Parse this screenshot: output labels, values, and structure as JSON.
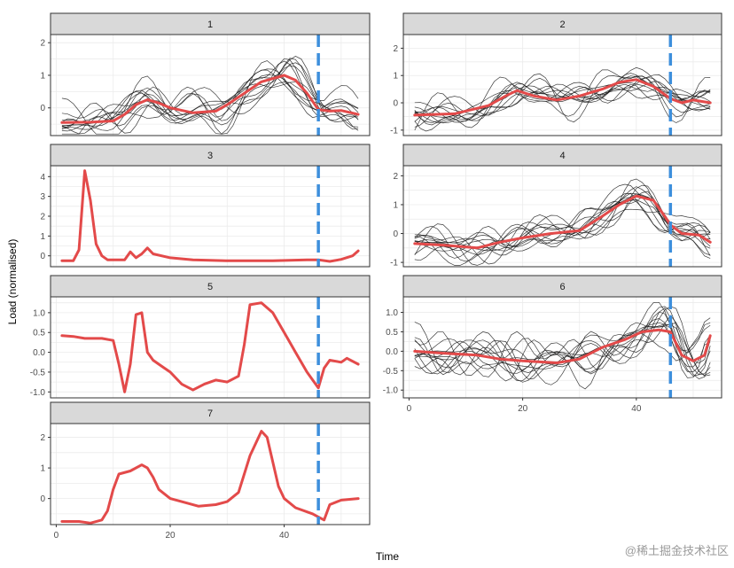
{
  "chart_data": {
    "type": "line",
    "facet_type": "faceted small multiples",
    "xlabel": "Time",
    "ylabel": "Load (normalised)",
    "xlim": [
      -1,
      55
    ],
    "x_ticks": [
      0,
      20,
      40
    ],
    "x_tick_labels": [
      "0",
      "20",
      "40"
    ],
    "vline_x": 46,
    "colors": {
      "centroid": "#e34a4a",
      "member": "#1a1a1a",
      "vline": "#3d8fdc",
      "strip": "#d9d9d9",
      "grid": "#ebebeb"
    },
    "panels": [
      {
        "label": "1",
        "ylim": [
          -0.85,
          2.25
        ],
        "y_ticks": [
          0,
          1,
          2
        ],
        "y_tick_labels": [
          "0",
          "1",
          "2"
        ],
        "members": 12,
        "centroid": [
          [
            1,
            -0.45
          ],
          [
            6,
            -0.44
          ],
          [
            10,
            -0.4
          ],
          [
            12,
            -0.2
          ],
          [
            14,
            0.1
          ],
          [
            16,
            0.25
          ],
          [
            18,
            0.15
          ],
          [
            20,
            0.0
          ],
          [
            24,
            -0.15
          ],
          [
            28,
            -0.1
          ],
          [
            30,
            0.1
          ],
          [
            33,
            0.45
          ],
          [
            36,
            0.8
          ],
          [
            40,
            1.0
          ],
          [
            42,
            0.85
          ],
          [
            44,
            0.45
          ],
          [
            46,
            -0.05
          ],
          [
            48,
            -0.1
          ],
          [
            50,
            -0.08
          ],
          [
            53,
            -0.2
          ]
        ]
      },
      {
        "label": "2",
        "ylim": [
          -1.2,
          2.5
        ],
        "y_ticks": [
          -1,
          0,
          1,
          2
        ],
        "y_tick_labels": [
          "-1",
          "0",
          "1",
          "2"
        ],
        "members": 12,
        "centroid": [
          [
            1,
            -0.45
          ],
          [
            8,
            -0.4
          ],
          [
            14,
            -0.1
          ],
          [
            17,
            0.25
          ],
          [
            19,
            0.45
          ],
          [
            22,
            0.25
          ],
          [
            26,
            0.1
          ],
          [
            30,
            0.25
          ],
          [
            34,
            0.5
          ],
          [
            37,
            0.75
          ],
          [
            40,
            0.85
          ],
          [
            43,
            0.6
          ],
          [
            46,
            0.15
          ],
          [
            48,
            0.0
          ],
          [
            50,
            0.1
          ],
          [
            53,
            0.0
          ]
        ]
      },
      {
        "label": "3",
        "ylim": [
          -0.55,
          4.55
        ],
        "y_ticks": [
          0,
          1,
          2,
          3,
          4
        ],
        "y_tick_labels": [
          "0",
          "1",
          "2",
          "3",
          "4"
        ],
        "members": 0,
        "centroid": [
          [
            1,
            -0.25
          ],
          [
            3,
            -0.25
          ],
          [
            4,
            0.3
          ],
          [
            5,
            4.3
          ],
          [
            6,
            2.8
          ],
          [
            7,
            0.6
          ],
          [
            8,
            0.0
          ],
          [
            9,
            -0.2
          ],
          [
            12,
            -0.2
          ],
          [
            13,
            0.2
          ],
          [
            14,
            -0.1
          ],
          [
            15,
            0.1
          ],
          [
            16,
            0.4
          ],
          [
            17,
            0.1
          ],
          [
            20,
            -0.1
          ],
          [
            24,
            -0.2
          ],
          [
            30,
            -0.25
          ],
          [
            38,
            -0.25
          ],
          [
            44,
            -0.2
          ],
          [
            46,
            -0.2
          ],
          [
            48,
            -0.28
          ],
          [
            50,
            -0.18
          ],
          [
            52,
            0.0
          ],
          [
            53,
            0.25
          ]
        ]
      },
      {
        "label": "4",
        "ylim": [
          -1.15,
          2.35
        ],
        "y_ticks": [
          -1,
          0,
          1,
          2
        ],
        "y_tick_labels": [
          "-1",
          "0",
          "1",
          "2"
        ],
        "members": 12,
        "centroid": [
          [
            1,
            -0.35
          ],
          [
            6,
            -0.4
          ],
          [
            12,
            -0.5
          ],
          [
            16,
            -0.3
          ],
          [
            20,
            -0.15
          ],
          [
            25,
            0.0
          ],
          [
            30,
            0.1
          ],
          [
            34,
            0.6
          ],
          [
            37,
            1.0
          ],
          [
            40,
            1.3
          ],
          [
            43,
            1.15
          ],
          [
            45,
            0.6
          ],
          [
            46,
            0.3
          ],
          [
            48,
            0.0
          ],
          [
            51,
            -0.05
          ],
          [
            53,
            -0.3
          ]
        ]
      },
      {
        "label": "5",
        "ylim": [
          -1.15,
          1.4
        ],
        "y_ticks": [
          -1.0,
          -0.5,
          0.0,
          0.5,
          1.0
        ],
        "y_tick_labels": [
          "-1.0",
          "-0.5",
          "0.0",
          "0.5",
          "1.0"
        ],
        "members": 0,
        "centroid": [
          [
            1,
            0.42
          ],
          [
            3,
            0.4
          ],
          [
            5,
            0.35
          ],
          [
            8,
            0.35
          ],
          [
            10,
            0.3
          ],
          [
            11,
            -0.3
          ],
          [
            12,
            -1.0
          ],
          [
            13,
            -0.3
          ],
          [
            14,
            0.95
          ],
          [
            15,
            1.0
          ],
          [
            16,
            0.0
          ],
          [
            17,
            -0.2
          ],
          [
            18,
            -0.3
          ],
          [
            19,
            -0.4
          ],
          [
            20,
            -0.5
          ],
          [
            22,
            -0.8
          ],
          [
            24,
            -0.95
          ],
          [
            26,
            -0.8
          ],
          [
            28,
            -0.7
          ],
          [
            30,
            -0.75
          ],
          [
            32,
            -0.6
          ],
          [
            33,
            0.2
          ],
          [
            34,
            1.2
          ],
          [
            36,
            1.25
          ],
          [
            38,
            1.0
          ],
          [
            40,
            0.5
          ],
          [
            42,
            0.0
          ],
          [
            44,
            -0.5
          ],
          [
            46,
            -0.9
          ],
          [
            47,
            -0.4
          ],
          [
            48,
            -0.2
          ],
          [
            50,
            -0.25
          ],
          [
            51,
            -0.15
          ],
          [
            53,
            -0.3
          ]
        ]
      },
      {
        "label": "6",
        "ylim": [
          -1.2,
          1.4
        ],
        "y_ticks": [
          -1.0,
          -0.5,
          0.0,
          0.5,
          1.0
        ],
        "y_tick_labels": [
          "-1.0",
          "-0.5",
          "0.0",
          "0.5",
          "1.0"
        ],
        "members": 12,
        "centroid": [
          [
            1,
            0.0
          ],
          [
            6,
            -0.05
          ],
          [
            12,
            -0.1
          ],
          [
            16,
            -0.2
          ],
          [
            20,
            -0.25
          ],
          [
            26,
            -0.3
          ],
          [
            30,
            -0.2
          ],
          [
            34,
            0.1
          ],
          [
            38,
            0.3
          ],
          [
            41,
            0.5
          ],
          [
            44,
            0.55
          ],
          [
            46,
            0.5
          ],
          [
            48,
            -0.1
          ],
          [
            50,
            -0.25
          ],
          [
            52,
            -0.1
          ],
          [
            53,
            0.4
          ]
        ]
      },
      {
        "label": "7",
        "ylim": [
          -0.85,
          2.45
        ],
        "y_ticks": [
          0,
          1,
          2
        ],
        "y_tick_labels": [
          "0",
          "1",
          "2"
        ],
        "members": 0,
        "centroid": [
          [
            1,
            -0.75
          ],
          [
            4,
            -0.75
          ],
          [
            6,
            -0.8
          ],
          [
            8,
            -0.7
          ],
          [
            9,
            -0.4
          ],
          [
            10,
            0.3
          ],
          [
            11,
            0.8
          ],
          [
            13,
            0.9
          ],
          [
            15,
            1.1
          ],
          [
            16,
            1.0
          ],
          [
            17,
            0.7
          ],
          [
            18,
            0.3
          ],
          [
            20,
            0.0
          ],
          [
            22,
            -0.1
          ],
          [
            25,
            -0.25
          ],
          [
            28,
            -0.2
          ],
          [
            30,
            -0.1
          ],
          [
            32,
            0.2
          ],
          [
            34,
            1.4
          ],
          [
            36,
            2.2
          ],
          [
            37,
            2.0
          ],
          [
            38,
            1.2
          ],
          [
            39,
            0.4
          ],
          [
            40,
            0.0
          ],
          [
            42,
            -0.3
          ],
          [
            45,
            -0.5
          ],
          [
            46,
            -0.6
          ],
          [
            47,
            -0.7
          ],
          [
            48,
            -0.2
          ],
          [
            50,
            -0.05
          ],
          [
            53,
            0.0
          ]
        ]
      }
    ]
  },
  "watermark": "@稀土掘金技术社区"
}
